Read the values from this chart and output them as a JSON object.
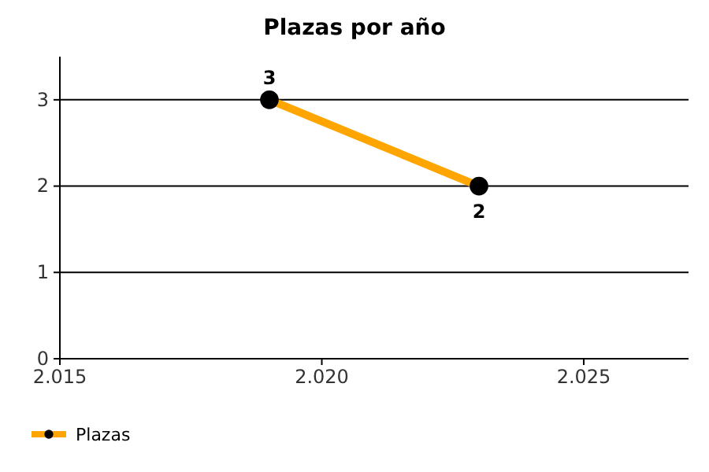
{
  "chart_data": {
    "type": "line",
    "title": "Plazas por año",
    "x": [
      2019,
      2023
    ],
    "series": [
      {
        "name": "Plazas",
        "color": "#ffa500",
        "values": [
          3,
          2
        ]
      }
    ],
    "xlim": [
      2015,
      2027
    ],
    "xticks": [
      {
        "value": 2015,
        "label": "2.015"
      },
      {
        "value": 2020,
        "label": "2.020"
      },
      {
        "value": 2025,
        "label": "2.025"
      }
    ],
    "ylim": [
      0,
      3.5
    ],
    "yticks": [
      0,
      1,
      2,
      3
    ],
    "grid": "y",
    "legend": "bottom left",
    "marker": "circle",
    "data_labels": true
  }
}
